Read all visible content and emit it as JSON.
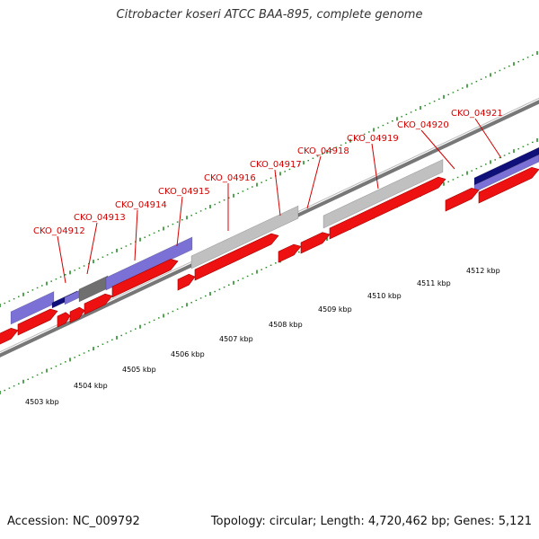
{
  "title": "Citrobacter koseri ATCC BAA-895, complete genome",
  "footer": {
    "accession": "Accession: NC_009792",
    "summary": "Topology: circular; Length: 4,720,462 bp; Genes: 5,121"
  },
  "colors": {
    "cds": "#ee1111",
    "cds_dark": "#a00000",
    "feature_blue": "#7a70d6",
    "feature_navy": "#10107a",
    "feature_gray": "#c0c0c0",
    "feature_dark_gray": "#6f6f6f",
    "backbone": "#888888",
    "tick": "#2a8a2a",
    "label": "#d40000"
  },
  "gene_labels": [
    {
      "name": "CKO_04912"
    },
    {
      "name": "CKO_04913"
    },
    {
      "name": "CKO_04914"
    },
    {
      "name": "CKO_04915"
    },
    {
      "name": "CKO_04916"
    },
    {
      "name": "CKO_04917"
    },
    {
      "name": "CKO_04918"
    },
    {
      "name": "CKO_04919"
    },
    {
      "name": "CKO_04920"
    },
    {
      "name": "CKO_04921"
    }
  ],
  "kbp_labels": [
    "4503 kbp",
    "4504 kbp",
    "4505 kbp",
    "4506 kbp",
    "4507 kbp",
    "4508 kbp",
    "4509 kbp",
    "4510 kbp",
    "4511 kbp",
    "4512 kbp"
  ]
}
